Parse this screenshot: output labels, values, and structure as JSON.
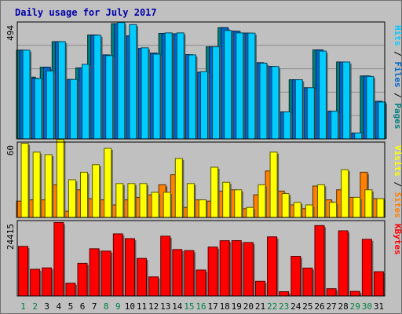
{
  "chart_data": {
    "type": "bar",
    "title": "Daily usage for July 2017",
    "categories": [
      "1",
      "2",
      "3",
      "4",
      "5",
      "6",
      "7",
      "8",
      "9",
      "10",
      "11",
      "12",
      "13",
      "14",
      "15",
      "16",
      "17",
      "18",
      "19",
      "20",
      "21",
      "22",
      "23",
      "24",
      "25",
      "26",
      "27",
      "28",
      "29",
      "30",
      "31"
    ],
    "weekend_days": [
      "1",
      "2",
      "8",
      "9",
      "15",
      "16",
      "22",
      "23",
      "29",
      "30"
    ],
    "panels": [
      {
        "id": "hits",
        "axis_max_label": "494",
        "ylim": [
          0,
          494
        ],
        "legend": [
          "Pages",
          "Files",
          "Hits"
        ],
        "series": [
          {
            "name": "Pages",
            "color": "#008080",
            "values": [
              375,
              261,
              303,
              411,
              251,
              300,
              439,
              355,
              487,
              435,
              382,
              363,
              446,
              444,
              356,
              282,
              389,
              470,
              455,
              447,
              322,
              306,
              114,
              250,
              216,
              376,
              117,
              325,
              25,
              266,
              159
            ]
          },
          {
            "name": "Files",
            "color": "#0066cc",
            "values": [
              375,
              256,
              303,
              411,
              251,
              300,
              439,
              355,
              487,
              435,
              382,
              363,
              446,
              444,
              356,
              282,
              389,
              470,
              455,
              447,
              322,
              306,
              114,
              250,
              216,
              376,
              117,
              325,
              25,
              266,
              159
            ]
          },
          {
            "name": "Hits",
            "color": "#00ccff",
            "values": [
              375,
              255,
              287,
              411,
              251,
              315,
              438,
              352,
              492,
              483,
              385,
              358,
              448,
              448,
              355,
              284,
              389,
              458,
              448,
              447,
              320,
              306,
              114,
              250,
              216,
              371,
              117,
              325,
              25,
              264,
              156
            ]
          }
        ]
      },
      {
        "id": "visits",
        "axis_max_label": "60",
        "ylim": [
          0,
          60
        ],
        "legend": [
          "Sites",
          "Visits"
        ],
        "series": [
          {
            "name": "Sites",
            "color": "#ff7f00",
            "values": [
              13,
              14,
              14,
              26,
              5,
              22,
              15,
              14,
              10,
              14,
              16,
              18,
              26,
              34,
              8,
              14,
              13,
              21,
              22,
              7,
              18,
              37,
              21,
              10,
              7,
              25,
              14,
              22,
              16,
              36,
              15
            ]
          },
          {
            "name": "Visits",
            "color": "#ffff00",
            "values": [
              59,
              52,
              50,
              62,
              30,
              36,
              42,
              55,
              27,
              27,
              27,
              20,
              20,
              47,
              27,
              14,
              40,
              28,
              22,
              8,
              26,
              52,
              19,
              12,
              10,
              26,
              12,
              38,
              16,
              22,
              15
            ]
          }
        ]
      },
      {
        "id": "kbytes",
        "axis_max_label": "24415",
        "ylim": [
          0,
          24415
        ],
        "legend": [
          "KBytes"
        ],
        "series": [
          {
            "name": "KBytes",
            "color": "#ff0000",
            "values": [
              16052,
              8636,
              9092,
              23784,
              4123,
              10574,
              15294,
              14524,
              20108,
              18578,
              12155,
              6175,
              19362,
              15043,
              14689,
              8406,
              15842,
              17902,
              17927,
              17314,
              4760,
              19147,
              1376,
              12842,
              9031,
              22802,
              2358,
              21108,
              1478,
              18354,
              7863
            ]
          }
        ]
      }
    ]
  }
}
